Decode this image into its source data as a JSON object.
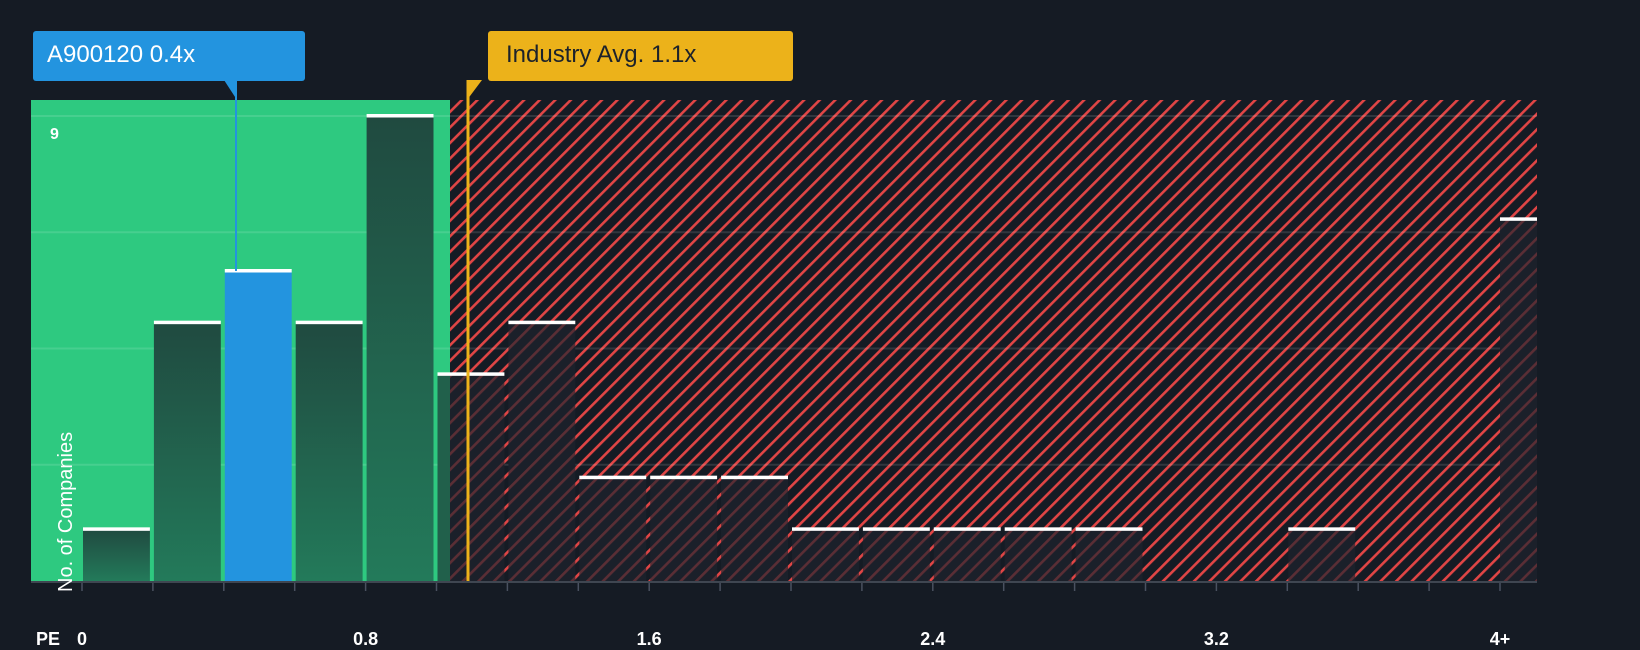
{
  "chart_data": {
    "type": "bar",
    "title": "",
    "xlabel": "PE",
    "ylabel": "No. of Companies",
    "ylim": [
      0,
      9
    ],
    "y_tick_labels": [
      "9"
    ],
    "x_tick_labels": [
      "0",
      "0.8",
      "1.6",
      "2.4",
      "3.2",
      "4+"
    ],
    "x_tick_values": [
      0,
      0.8,
      1.6,
      2.4,
      3.2,
      4
    ],
    "bin_width": 0.2,
    "categories": [
      "0-0.2",
      "0.2-0.4",
      "0.4-0.6",
      "0.6-0.8",
      "0.8-1.0",
      "1.0-1.2",
      "1.2-1.4",
      "1.4-1.6",
      "1.6-1.8",
      "1.8-2.0",
      "2.0-2.2",
      "2.2-2.4",
      "2.4-2.6",
      "2.6-2.8",
      "2.8-3.0",
      "3.0-3.2",
      "3.2-3.4",
      "3.4-3.6",
      "3.6-3.8",
      "3.8-4.0",
      "4+"
    ],
    "values": [
      1,
      5,
      6,
      5,
      9,
      4,
      5,
      2,
      2,
      2,
      1,
      1,
      1,
      1,
      1,
      0,
      0,
      1,
      0,
      0,
      7
    ],
    "highlight_index": 2,
    "grid": true,
    "annotations": [
      {
        "label": "A900120 0.4x",
        "value": 0.43,
        "color": "#2394df"
      },
      {
        "label": "Industry Avg. 1.1x",
        "value": 1.1,
        "color": "#ecb21a"
      }
    ],
    "regions": [
      {
        "name": "below-average",
        "from": 0,
        "to": 1.05,
        "color": "#2ec980"
      },
      {
        "name": "above-average",
        "from": 1.05,
        "to": 4.2,
        "color": "#e04545",
        "pattern": "hatch"
      }
    ]
  },
  "labels": {
    "company_tooltip": "A900120 0.4x",
    "industry_tooltip": "Industry Avg. 1.1x",
    "y_axis": "No. of Companies",
    "x_axis": "PE",
    "y_tick_top": "9"
  },
  "colors": {
    "background": "#151b24",
    "green_zone": "#2ec980",
    "red_hatch": "#e04545",
    "company": "#2394df",
    "industry": "#ecb21a"
  }
}
